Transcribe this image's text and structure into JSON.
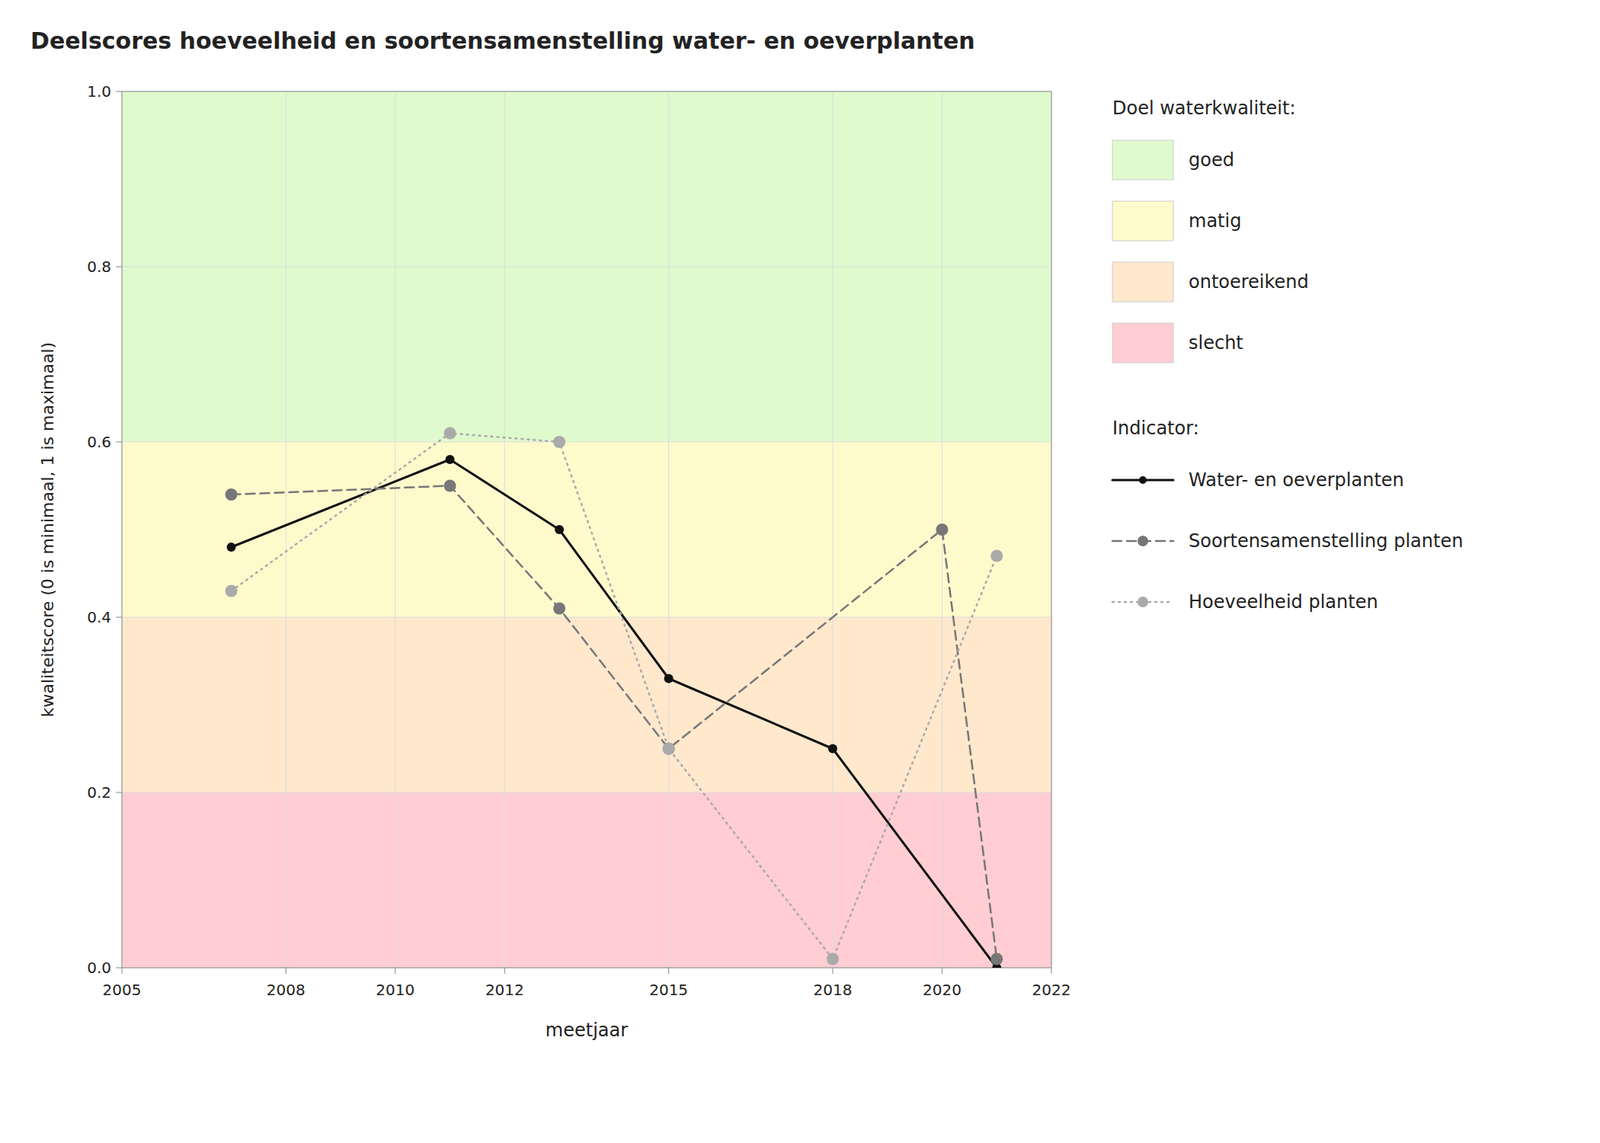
{
  "chart_data": {
    "type": "line",
    "title": "Deelscores hoeveelheid en soortensamenstelling water- en oeverplanten",
    "x_label": "meetjaar",
    "y_label": "kwaliteitscore (0 is minimaal, 1 is maximaal)",
    "xlim": [
      2005,
      2022
    ],
    "ylim": [
      0,
      1
    ],
    "xticks": [
      2005,
      2008,
      2010,
      2012,
      2015,
      2018,
      2020,
      2022
    ],
    "yticks": [
      {
        "value": 0,
        "label": "0.0"
      },
      0.2,
      0.4,
      0.6,
      0.8,
      {
        "value": 1,
        "label": "1.0"
      }
    ],
    "grid": true,
    "legend": "right",
    "zones_title": "Doel waterkwaliteit:",
    "series_title": "Indicator:",
    "background_zones": [
      {
        "name": "goed",
        "ymin": 0.6,
        "ymax": 1.0,
        "color": "#DFFACC"
      },
      {
        "name": "matig",
        "ymin": 0.4,
        "ymax": 0.6,
        "color": "#FFFACC"
      },
      {
        "name": "ontoereikend",
        "ymin": 0.2,
        "ymax": 0.4,
        "color": "#FFE8CC"
      },
      {
        "name": "slecht",
        "ymin": 0.0,
        "ymax": 0.2,
        "color": "#FFCDD2"
      }
    ],
    "series": [
      {
        "name": "Water- en oeverplanten",
        "color": "#111111",
        "line_style": "solid",
        "marker": "circle",
        "x": [
          2007,
          2011,
          2013,
          2015,
          2018,
          2021
        ],
        "values": [
          0.48,
          0.58,
          0.5,
          0.33,
          0.25,
          0.0
        ]
      },
      {
        "name": "Soortensamenstelling planten",
        "color": "#777777",
        "line_style": "dashed",
        "marker": "circle",
        "x": [
          2007,
          2011,
          2013,
          2015,
          2020,
          2021
        ],
        "values": [
          0.54,
          0.55,
          0.41,
          0.25,
          0.5,
          0.01
        ]
      },
      {
        "name": "Hoeveelheid planten",
        "color": "#aaaaaa",
        "line_style": "dotted",
        "marker": "circle",
        "x": [
          2007,
          2011,
          2013,
          2015,
          2018,
          2021
        ],
        "values": [
          0.43,
          0.61,
          0.6,
          0.25,
          0.01,
          0.47
        ]
      }
    ]
  }
}
